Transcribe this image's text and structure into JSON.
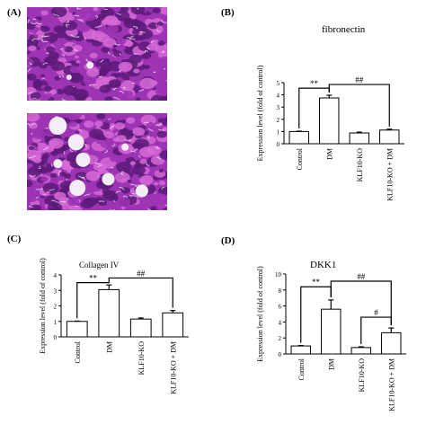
{
  "panels": {
    "a": {
      "label": "(A)"
    },
    "b": {
      "label": "(B)"
    },
    "c": {
      "label": "(C)"
    },
    "d": {
      "label": "(D)"
    }
  },
  "colors": {
    "tissue_dark": "#5a1a78",
    "tissue_mid": "#9c34b4",
    "tissue_light": "#d66ad6",
    "lumen": "#f4ecf6",
    "bar_fill": "#ffffff",
    "stroke": "#000000"
  },
  "chart_data": [
    {
      "id": "fibronectin",
      "type": "bar",
      "title": "fibronectin",
      "ylabel": "Expression level  (fold of control)",
      "xlabel": "",
      "ylim": [
        0,
        5
      ],
      "yticks": [
        0,
        1,
        2,
        3,
        4,
        5
      ],
      "categories": [
        "Control",
        "DM",
        "KLF10-KO",
        "KLF10-KO + DM"
      ],
      "values": [
        1.0,
        3.75,
        0.88,
        1.12
      ],
      "errors": [
        0.03,
        0.22,
        0.07,
        0.07
      ],
      "annotations": [
        {
          "from": 0,
          "to": 1,
          "text": "**",
          "level": 4.55
        },
        {
          "from": 1,
          "to": 3,
          "text": "##",
          "level": 4.85
        }
      ]
    },
    {
      "id": "collagen",
      "type": "bar",
      "title": "Collagen IV",
      "ylabel": "Expression level  (fold of control)",
      "xlabel": "",
      "ylim": [
        0,
        4
      ],
      "yticks": [
        0,
        1,
        2,
        3,
        4
      ],
      "categories": [
        "Control",
        "DM",
        "KLF10-KO",
        "KLF10-KO + DM"
      ],
      "values": [
        1.0,
        3.05,
        1.15,
        1.55
      ],
      "errors": [
        0.02,
        0.3,
        0.07,
        0.15
      ],
      "annotations": [
        {
          "from": 0,
          "to": 1,
          "text": "**",
          "level": 3.5
        },
        {
          "from": 1,
          "to": 3,
          "text": "##",
          "level": 3.8
        }
      ]
    },
    {
      "id": "dkk1",
      "type": "bar",
      "title": "DKK1",
      "ylabel": "Expression level  (fold of control)",
      "xlabel": "",
      "ylim": [
        0,
        10
      ],
      "yticks": [
        0,
        2,
        4,
        6,
        8,
        10
      ],
      "categories": [
        "Control",
        "DM",
        "KLF10-KO",
        "KLF10-KO + DM"
      ],
      "values": [
        1.0,
        5.6,
        0.8,
        2.65
      ],
      "errors": [
        0.05,
        1.15,
        0.1,
        0.6
      ],
      "annotations": [
        {
          "from": 0,
          "to": 1,
          "text": "**",
          "level": 8.4
        },
        {
          "from": 1,
          "to": 3,
          "text": "##",
          "level": 9.1
        },
        {
          "from": 2,
          "to": 3,
          "text": "#",
          "level": 4.6
        }
      ]
    }
  ]
}
